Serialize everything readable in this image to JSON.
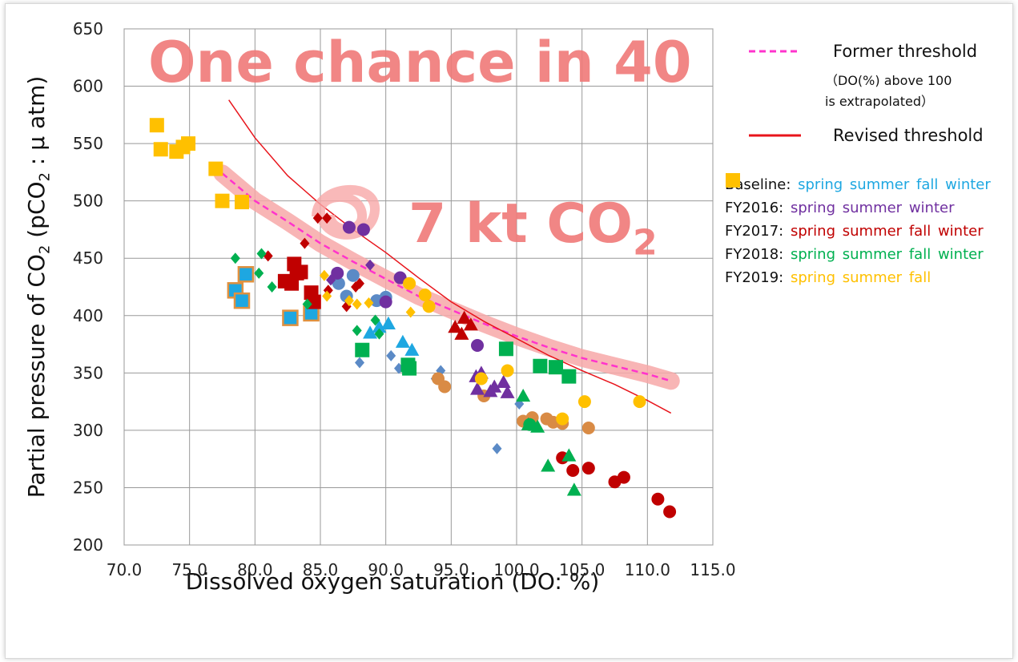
{
  "chart_data": {
    "type": "scatter",
    "xlabel": "Dissolved oxygen saturation (DO: %)",
    "ylabel": [
      "Partial pressure of CO",
      "2",
      " (pCO",
      "2",
      " : μ atm)"
    ],
    "annotations": [
      {
        "text": [
          "One chance in 40"
        ],
        "color": "#f07a78"
      },
      {
        "text": [
          "7 kt CO",
          "2"
        ],
        "color": "#f07a78"
      }
    ],
    "xlim": [
      70,
      115
    ],
    "ylim": [
      200,
      650
    ],
    "grid": true,
    "xticks": [
      {
        "value": 70,
        "label": "70.0"
      },
      {
        "value": 75,
        "label": "75.0"
      },
      {
        "value": 80,
        "label": "80.0"
      },
      {
        "value": 85,
        "label": "85.0"
      },
      {
        "value": 90,
        "label": "90.0"
      },
      {
        "value": 95,
        "label": "95.0"
      },
      {
        "value": 100,
        "label": "100.0"
      },
      {
        "value": 105,
        "label": "105.0"
      },
      {
        "value": 110,
        "label": "110.0"
      },
      {
        "value": 115,
        "label": "115.0"
      }
    ],
    "yticks": [
      200,
      250,
      300,
      350,
      400,
      450,
      500,
      550,
      600,
      650
    ],
    "lines": [
      {
        "name": "Former threshold",
        "note": [
          "（DO(%) above 100",
          "is extrapolated）"
        ],
        "color": "#ff33cc",
        "dashed": true,
        "band_color": "#f7a8a8",
        "x": [
          77.5,
          80,
          82.5,
          85,
          87.5,
          90,
          92.5,
          95,
          97.5,
          100,
          102.5,
          105,
          107.5,
          110,
          111.8
        ],
        "y": [
          524,
          500,
          482,
          463,
          447,
          432,
          417,
          405,
          393,
          382,
          372,
          363,
          356,
          349,
          343
        ]
      },
      {
        "name": "Revised threshold",
        "color": "#e8141b",
        "dashed": false,
        "x": [
          78,
          80,
          82.5,
          85,
          87.5,
          90,
          92.5,
          95,
          97.5,
          100,
          102.5,
          105,
          107.5,
          110,
          111.8
        ],
        "y": [
          588,
          555,
          522,
          497,
          475,
          455,
          433,
          412,
          395,
          380,
          365,
          352,
          340,
          326,
          315
        ]
      }
    ],
    "groups": [
      {
        "label": "Baseline:",
        "color": "#1ea7e1",
        "series": [
          {
            "name": "spring",
            "marker": "circle",
            "color": "#5b8ac6",
            "x": [
              86.4,
              87,
              87.5,
              89.3,
              90
            ],
            "y": [
              428,
              417,
              435,
              413,
              416
            ]
          },
          {
            "name": "summer",
            "marker": "diamond",
            "color": "#5b8ac6",
            "x": [
              88,
              90.4,
              91,
              93.8,
              94.2,
              98.5,
              100.2
            ],
            "y": [
              359,
              365,
              354,
              345,
              352,
              284,
              323
            ]
          },
          {
            "name": "fall",
            "marker": "square",
            "color": "#1ea7e1",
            "edge": "#e0913f",
            "x": [
              78.5,
              79,
              79.3,
              82.7,
              84.3
            ],
            "y": [
              422,
              413,
              436,
              398,
              402
            ]
          },
          {
            "name": "winter",
            "marker": "triangle",
            "color": "#1ea7e1",
            "x": [
              88.8,
              89.5,
              90.2,
              91.3,
              92
            ],
            "y": [
              385,
              390,
              393,
              377,
              370
            ]
          },
          {
            "marker": "circle",
            "color": "#d98b45",
            "x": [
              94,
              94.5,
              97.5,
              100.5,
              101.2,
              102.3,
              102.8,
              103.5,
              105.5
            ],
            "y": [
              345,
              338,
              330,
              308,
              311,
              310,
              307,
              306,
              302
            ]
          }
        ]
      },
      {
        "label": "FY2016:",
        "color": "#7030a0",
        "series": [
          {
            "name": "spring",
            "marker": "circle",
            "color": "#7030a0",
            "x": [
              87.2,
              88.3,
              86.3,
              90,
              91.1,
              97
            ],
            "y": [
              477,
              475,
              437,
              412,
              433,
              374
            ]
          },
          {
            "name": "summer",
            "marker": "diamond",
            "color": "#7030a0",
            "x": [
              85.8,
              88.8
            ],
            "y": [
              431,
              444
            ]
          },
          {
            "name": "winter",
            "marker": "triangle",
            "color": "#7030a0",
            "x": [
              96.9,
              97,
              97.3,
              98,
              98.3,
              99,
              99.3
            ],
            "y": [
              347,
              336,
              350,
              334,
              338,
              342,
              333
            ]
          }
        ]
      },
      {
        "label": "FY2017:",
        "color": "#c00000",
        "series": [
          {
            "name": "spring",
            "marker": "circle",
            "color": "#c00000",
            "x": [
              103.5,
              104.3,
              105.5,
              107.5,
              108.2,
              110.8,
              111.7
            ],
            "y": [
              276,
              265,
              267,
              255,
              259,
              240,
              229
            ]
          },
          {
            "name": "summer",
            "marker": "diamond",
            "color": "#c00000",
            "x": [
              84.8,
              85.5,
              83.8,
              81,
              85.6,
              87,
              87.7,
              88
            ],
            "y": [
              485,
              485,
              463,
              452,
              422,
              408,
              425,
              428
            ]
          },
          {
            "name": "fall",
            "marker": "square",
            "color": "#c00000",
            "x": [
              82.3,
              83,
              83.5,
              82.8,
              84.3,
              84.5,
              83.2
            ],
            "y": [
              430,
              445,
              438,
              428,
              420,
              412,
              437
            ]
          },
          {
            "name": "winter",
            "marker": "triangle",
            "color": "#c00000",
            "x": [
              95.3,
              95.8,
              96,
              96.5
            ],
            "y": [
              390,
              384,
              398,
              392
            ]
          }
        ]
      },
      {
        "label": "FY2018:",
        "color": "#00b050",
        "series": [
          {
            "name": "spring",
            "marker": "circle",
            "color": "#00b050",
            "x": [
              101
            ],
            "y": [
              305
            ]
          },
          {
            "name": "summer",
            "marker": "diamond",
            "color": "#00b050",
            "x": [
              78.5,
              80.5,
              80.3,
              81.3,
              84,
              87.8,
              89.2,
              89.5
            ],
            "y": [
              450,
              454,
              437,
              425,
              410,
              387,
              396,
              384
            ]
          },
          {
            "name": "fall",
            "marker": "square",
            "color": "#00b050",
            "x": [
              88.2,
              91.8,
              91.7,
              99.2,
              101.8,
              103,
              104
            ],
            "y": [
              370,
              354,
              357,
              371,
              356,
              355,
              347
            ]
          },
          {
            "name": "winter",
            "marker": "triangle",
            "color": "#00b050",
            "x": [
              100.5,
              100.9,
              101.6,
              102.4,
              104,
              104.4
            ],
            "y": [
              330,
              305,
              303,
              269,
              278,
              248
            ]
          }
        ]
      },
      {
        "label": "FY2019:",
        "color": "#ffc000",
        "series": [
          {
            "name": "spring",
            "marker": "circle",
            "color": "#ffc000",
            "x": [
              91.8,
              93,
              93.3,
              97.3,
              99.3,
              103.5,
              105.2,
              109.4
            ],
            "y": [
              428,
              418,
              408,
              345,
              352,
              310,
              325,
              325
            ]
          },
          {
            "name": "summer",
            "marker": "diamond",
            "color": "#ffc000",
            "x": [
              85.3,
              85.5,
              87.2,
              87.8,
              88.7,
              91.9
            ],
            "y": [
              435,
              417,
              413,
              410,
              411,
              403
            ]
          },
          {
            "name": "fall",
            "marker": "square",
            "color": "#ffc000",
            "x": [
              72.5,
              72.8,
              74,
              74.5,
              74.9,
              77,
              77.5,
              79
            ],
            "y": [
              566,
              545,
              543,
              547,
              550,
              528,
              500,
              499
            ]
          }
        ]
      }
    ]
  }
}
